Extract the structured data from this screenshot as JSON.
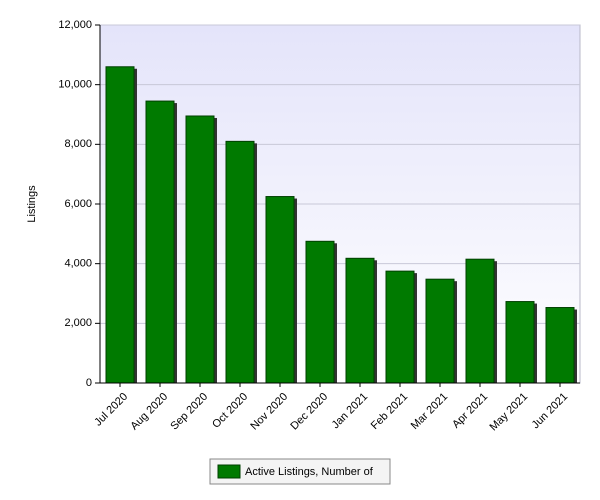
{
  "chart_data": {
    "type": "bar",
    "y_label": "Listings",
    "categories": [
      "Jul 2020",
      "Aug 2020",
      "Sep 2020",
      "Oct 2020",
      "Nov 2020",
      "Dec 2020",
      "Jan 2021",
      "Feb 2021",
      "Mar 2021",
      "Apr 2021",
      "May 2021",
      "Jun 2021"
    ],
    "series": [
      {
        "name": "Active Listings, Number of",
        "color": "#007a00",
        "values": [
          10600,
          9450,
          8950,
          8100,
          6250,
          4750,
          4180,
          3750,
          3480,
          4150,
          2730,
          2530
        ]
      }
    ],
    "ylim": [
      0,
      12000
    ],
    "yticks": [
      0,
      {
        "value": 2000,
        "label": "2,000"
      },
      {
        "value": 4000,
        "label": "4,000"
      },
      {
        "value": 6000,
        "label": "6,000"
      },
      {
        "value": 8000,
        "label": "8,000"
      },
      {
        "value": 10000,
        "label": "10,000"
      },
      {
        "value": 12000,
        "label": "12,000"
      }
    ],
    "grid": true
  }
}
